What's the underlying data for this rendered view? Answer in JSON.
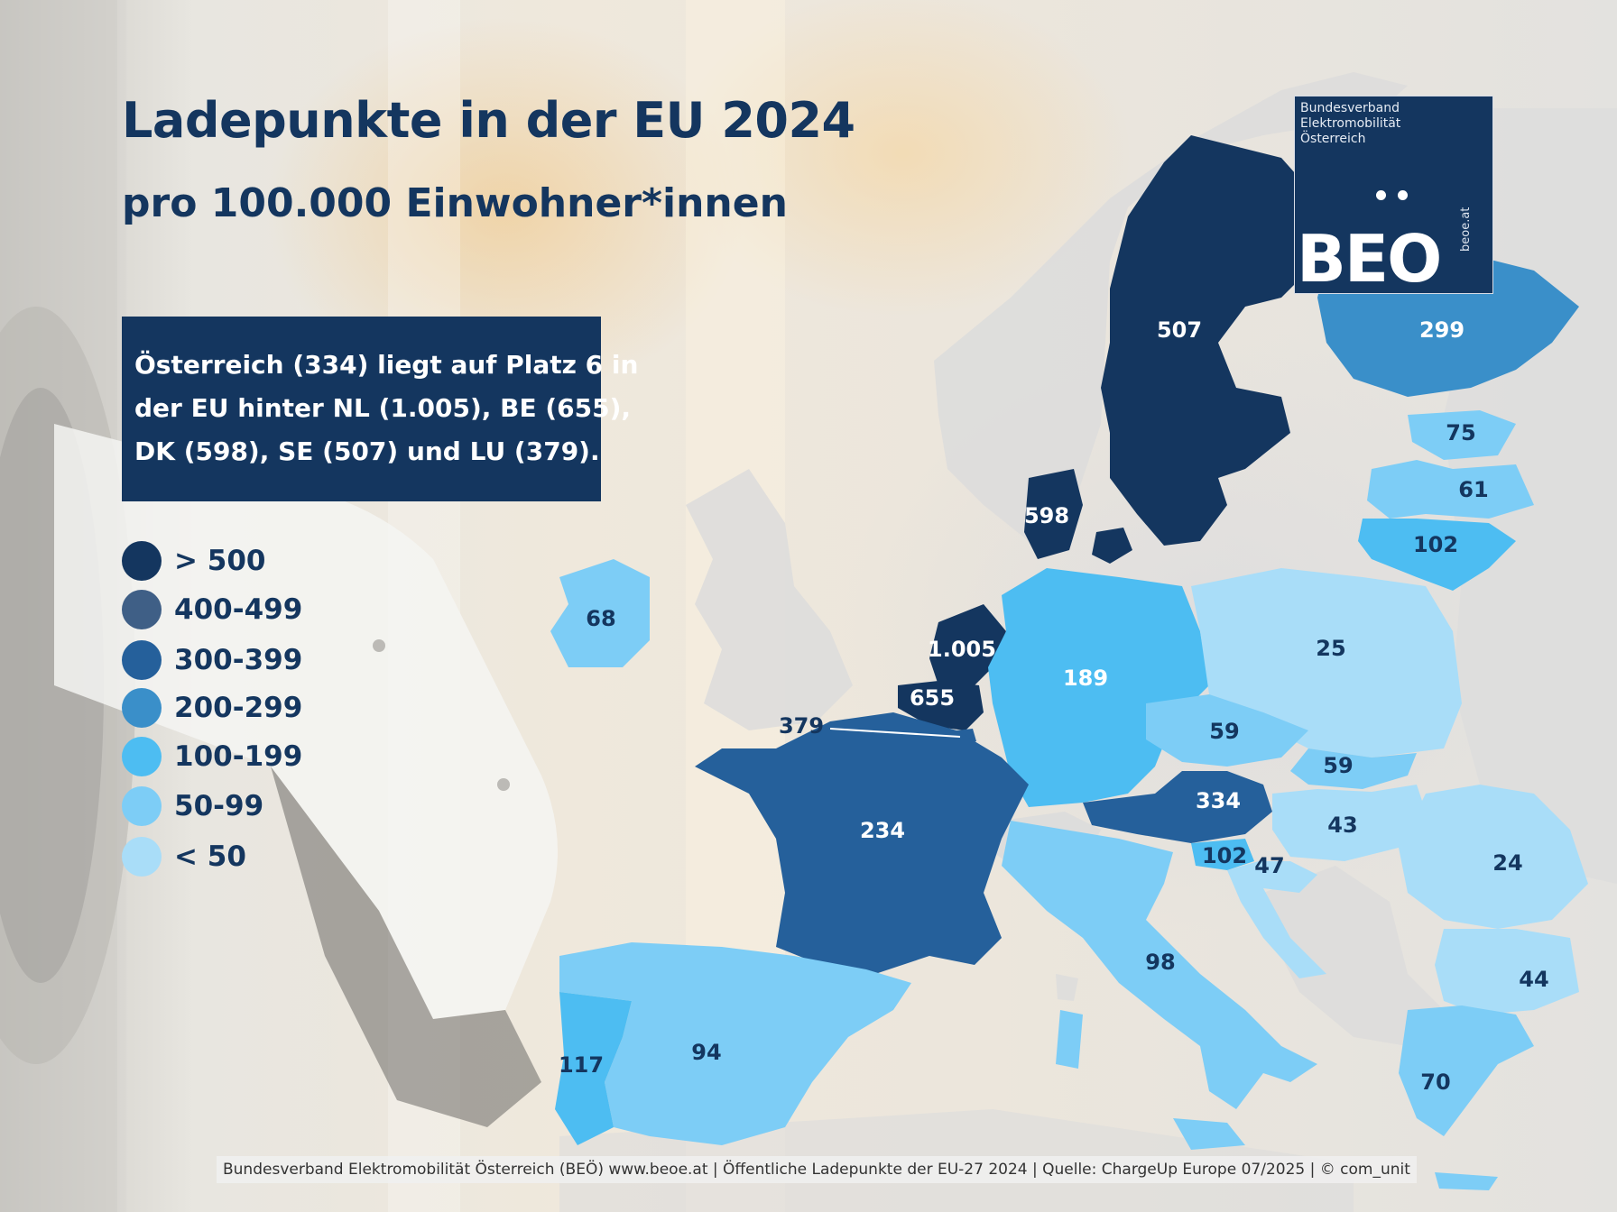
{
  "title": "Ladepunkte in der EU 2024",
  "subtitle": "pro 100.000 Einwohner*innen",
  "callout": {
    "lines": [
      "Österreich (334) liegt auf Platz 6 in",
      "der EU hinter NL (1.005), BE (655),",
      "DK (598), SE (507) und LU (379)."
    ]
  },
  "legend": [
    {
      "label": "> 500",
      "color": "#14365f"
    },
    {
      "label": "400-499",
      "color": "#3f5f86"
    },
    {
      "label": "300-399",
      "color": "#25609b"
    },
    {
      "label": "200-299",
      "color": "#3a8fc9"
    },
    {
      "label": "100-199",
      "color": "#4dbdf2"
    },
    {
      "label": "50-99",
      "color": "#7dcdf6"
    },
    {
      "label": "< 50",
      "color": "#a9ddf8"
    }
  ],
  "logo": {
    "org_lines": [
      "Bundesverband",
      "Elektromobilität",
      "Österreich"
    ],
    "brand": "BEO",
    "url": "beoe.at"
  },
  "countries": {
    "sweden": {
      "value": "507"
    },
    "finland": {
      "value": "299"
    },
    "estonia": {
      "value": "75"
    },
    "latvia": {
      "value": "61"
    },
    "lithuania": {
      "value": "102"
    },
    "denmark": {
      "value": "598"
    },
    "ireland": {
      "value": "68"
    },
    "netherlands": {
      "value": "1.005"
    },
    "belgium": {
      "value": "655"
    },
    "luxembourg": {
      "value": "379"
    },
    "germany": {
      "value": "189"
    },
    "poland": {
      "value": "25"
    },
    "czechia": {
      "value": "59"
    },
    "slovakia": {
      "value": "59"
    },
    "austria": {
      "value": "334"
    },
    "hungary": {
      "value": "43"
    },
    "slovenia": {
      "value": "102"
    },
    "croatia": {
      "value": "47"
    },
    "romania": {
      "value": "24"
    },
    "bulgaria": {
      "value": "44"
    },
    "france": {
      "value": "234"
    },
    "italy": {
      "value": "98"
    },
    "spain": {
      "value": "94"
    },
    "portugal": {
      "value": "117"
    },
    "greece": {
      "value": "70"
    }
  },
  "footer": "Bundesverband Elektromobilität Österreich (BEÖ) www.beoe.at | Öffentliche Ladepunkte der EU-27 2024 | Quelle: ChargeUp Europe 07/2025 | © com_unit"
}
